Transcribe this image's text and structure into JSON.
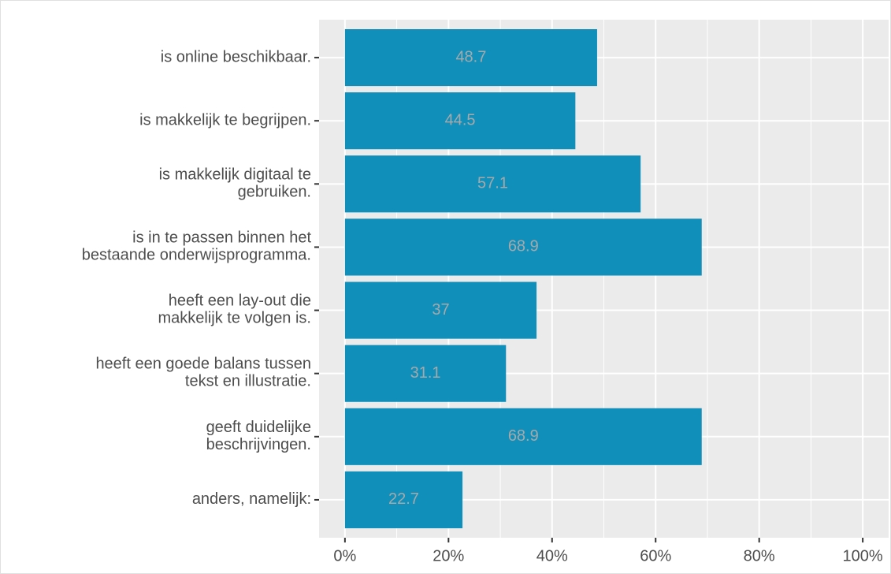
{
  "chart_data": {
    "type": "barh",
    "categories": [
      "is online beschikbaar.",
      "is makkelijk te begrijpen.",
      "is makkelijk digitaal te\ngebruiken.",
      "is in te passen binnen het\nbestaande onderwijsprogramma.",
      "heeft een lay-out die\nmakkelijk te volgen is.",
      "heeft een goede balans tussen\ntekst en illustratie.",
      "geeft duidelijke\nbeschrijvingen.",
      "anders, namelijk:"
    ],
    "values": [
      48.7,
      44.5,
      57.1,
      68.9,
      37,
      31.1,
      68.9,
      22.7
    ],
    "color": "#0f8fba",
    "xlim": [
      -5,
      105
    ],
    "xticks": [
      {
        "value": 0,
        "label": "0%"
      },
      {
        "value": 20,
        "label": "20%"
      },
      {
        "value": 40,
        "label": "40%"
      },
      {
        "value": 60,
        "label": "60%"
      },
      {
        "value": 80,
        "label": "80%"
      },
      {
        "value": 100,
        "label": "100%"
      }
    ],
    "grid": true
  }
}
